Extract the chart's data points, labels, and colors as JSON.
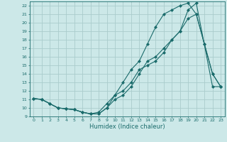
{
  "xlabel": "Humidex (Indice chaleur)",
  "bg_color": "#cce8e8",
  "line_color": "#1a6b6b",
  "grid_color": "#aacccc",
  "xlim": [
    -0.5,
    23.5
  ],
  "ylim": [
    9,
    22.5
  ],
  "xticks": [
    0,
    1,
    2,
    3,
    4,
    5,
    6,
    7,
    8,
    9,
    10,
    11,
    12,
    13,
    14,
    15,
    16,
    17,
    18,
    19,
    20,
    21,
    22,
    23
  ],
  "yticks": [
    9,
    10,
    11,
    12,
    13,
    14,
    15,
    16,
    17,
    18,
    19,
    20,
    21,
    22
  ],
  "line1_x": [
    0,
    1,
    2,
    3,
    4,
    5,
    6,
    7,
    8,
    9,
    10,
    11,
    12,
    13,
    14,
    15,
    16,
    17,
    18,
    19,
    20,
    21,
    22,
    23
  ],
  "line1_y": [
    11.1,
    11.0,
    10.5,
    10.0,
    9.9,
    9.8,
    9.5,
    9.3,
    9.3,
    10.0,
    11.0,
    11.5,
    12.5,
    14.0,
    15.5,
    16.0,
    17.0,
    18.0,
    19.0,
    20.5,
    21.0,
    17.5,
    14.0,
    12.5
  ],
  "line2_x": [
    0,
    1,
    2,
    3,
    4,
    5,
    6,
    7,
    8,
    9,
    10,
    11,
    12,
    13,
    14,
    15,
    16,
    17,
    18,
    19,
    20,
    21,
    22,
    23
  ],
  "line2_y": [
    11.1,
    11.0,
    10.5,
    10.0,
    9.9,
    9.8,
    9.5,
    9.3,
    9.3,
    10.0,
    11.5,
    13.0,
    14.5,
    15.5,
    17.5,
    19.5,
    21.0,
    21.5,
    22.0,
    22.3,
    21.0,
    17.5,
    14.0,
    12.5
  ],
  "line3_x": [
    0,
    1,
    2,
    3,
    4,
    5,
    6,
    7,
    8,
    9,
    10,
    11,
    12,
    13,
    14,
    15,
    16,
    17,
    18,
    19,
    20,
    22,
    23
  ],
  "line3_y": [
    11.1,
    11.0,
    10.5,
    10.0,
    9.9,
    9.8,
    9.5,
    9.3,
    9.5,
    10.5,
    11.5,
    12.0,
    13.0,
    14.5,
    15.0,
    15.5,
    16.5,
    18.0,
    19.0,
    21.5,
    22.3,
    12.5,
    12.5
  ]
}
